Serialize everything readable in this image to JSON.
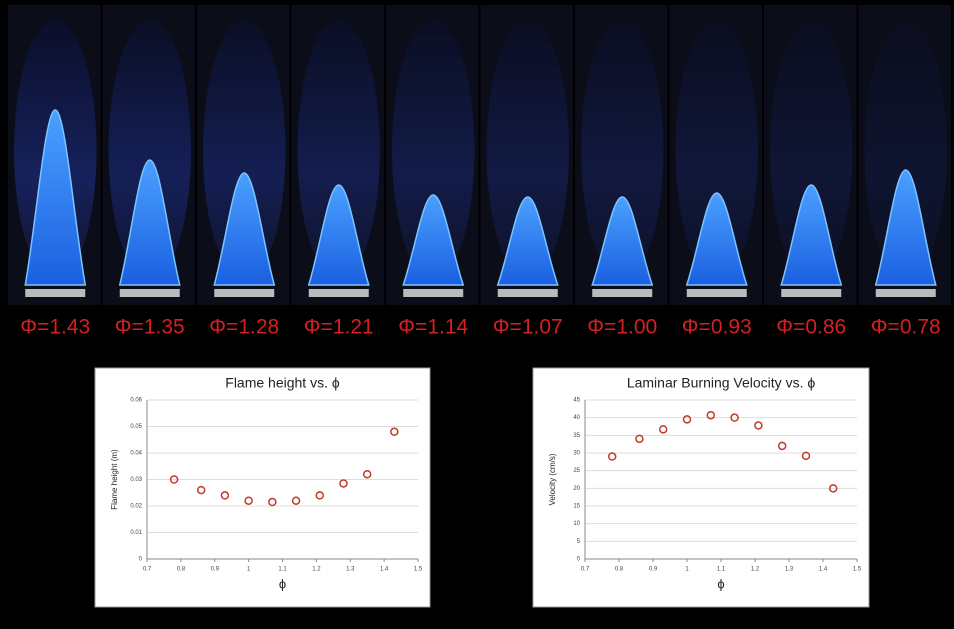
{
  "flames": [
    "Φ=1.43",
    "Φ=1.35",
    "Φ=1.28",
    "Φ=1.21",
    "Φ=1.14",
    "Φ=1.07",
    "Φ=1.00",
    "Φ=0.93",
    "Φ=0.86",
    "Φ=0.78"
  ],
  "chart_data": [
    {
      "type": "scatter",
      "title": "Flame height vs. ϕ",
      "xlabel": "ϕ",
      "ylabel": "Flame height (m)",
      "x": [
        0.78,
        0.86,
        0.93,
        1.0,
        1.07,
        1.14,
        1.21,
        1.28,
        1.35,
        1.43
      ],
      "values": [
        0.03,
        0.026,
        0.024,
        0.022,
        0.0215,
        0.022,
        0.024,
        0.0285,
        0.032,
        0.048
      ],
      "color": "#c0392b",
      "xlim": [
        0.7,
        1.5
      ],
      "xticks": [
        0.7,
        0.8,
        0.9,
        1,
        1.1,
        1.2,
        1.3,
        1.4,
        1.5
      ],
      "ylim": [
        0,
        0.06
      ],
      "yticks": [
        0,
        0.01,
        0.02,
        0.03,
        0.04,
        0.05,
        0.06
      ],
      "grid": true
    },
    {
      "type": "scatter",
      "title": "Laminar Burning Velocity vs. ϕ",
      "xlabel": "ϕ",
      "ylabel": "Velocity (cm/s)",
      "x": [
        0.78,
        0.86,
        0.93,
        1.0,
        1.07,
        1.14,
        1.21,
        1.28,
        1.35,
        1.43
      ],
      "values": [
        29,
        34,
        36.7,
        39.5,
        40.7,
        40,
        37.8,
        32,
        29.2,
        20
      ],
      "color": "#c0392b",
      "xlim": [
        0.7,
        1.5
      ],
      "xticks": [
        0.7,
        0.8,
        0.9,
        1,
        1.1,
        1.2,
        1.3,
        1.4,
        1.5
      ],
      "ylim": [
        0,
        45
      ],
      "yticks": [
        0,
        5,
        10,
        15,
        20,
        25,
        30,
        35,
        40,
        45
      ],
      "grid": true
    }
  ]
}
